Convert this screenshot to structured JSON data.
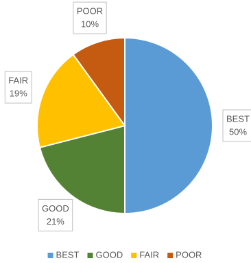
{
  "chart_data": {
    "type": "pie",
    "categories": [
      "BEST",
      "GOOD",
      "FAIR",
      "POOR"
    ],
    "values": [
      50,
      21,
      19,
      10
    ],
    "value_labels": [
      "50%",
      "21%",
      "19%",
      "10%"
    ],
    "colors": [
      "#5b9bd5",
      "#548235",
      "#ffc000",
      "#c55a11"
    ],
    "legend": "bottom"
  }
}
